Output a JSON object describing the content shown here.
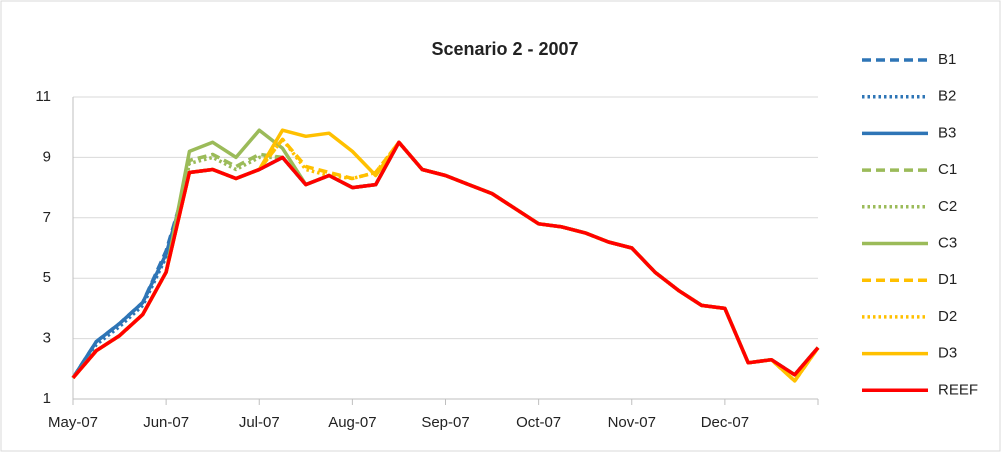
{
  "chart_data": {
    "type": "line",
    "title": "Scenario 2 - 2007",
    "x": [
      0,
      0.25,
      0.5,
      0.75,
      1,
      1.25,
      1.5,
      1.75,
      2,
      2.25,
      2.5,
      2.75,
      3,
      3.25,
      3.5,
      3.75,
      4,
      4.25,
      4.5,
      4.75,
      5,
      5.25,
      5.5,
      5.75,
      6,
      6.25,
      6.5,
      6.75,
      7,
      7.25,
      7.5,
      7.75,
      8
    ],
    "xlim": [
      0,
      8
    ],
    "xticks": [
      {
        "value": 0,
        "label": "May-07"
      },
      {
        "value": 1,
        "label": "Jun-07"
      },
      {
        "value": 2,
        "label": "Jul-07"
      },
      {
        "value": 3,
        "label": "Aug-07"
      },
      {
        "value": 4,
        "label": "Sep-07"
      },
      {
        "value": 5,
        "label": "Oct-07"
      },
      {
        "value": 6,
        "label": "Nov-07"
      },
      {
        "value": 7,
        "label": "Dec-07"
      }
    ],
    "ylim": [
      1,
      11
    ],
    "yticks": [
      1,
      3,
      5,
      7,
      9,
      11
    ],
    "grid": true,
    "legend": "right",
    "series": [
      {
        "name": "B1",
        "color": "#2e75b6",
        "style": "dashed",
        "values": [
          1.7,
          2.9,
          3.5,
          4.2,
          5.9,
          8.5,
          8.6,
          8.3,
          8.6,
          9.0,
          8.1,
          8.4,
          8.0,
          8.1,
          9.5,
          8.6,
          8.4,
          8.1,
          7.8,
          7.3,
          6.8,
          6.7,
          6.5,
          6.2,
          6.0,
          5.2,
          4.6,
          4.1,
          4.0,
          2.2,
          2.3,
          1.8,
          2.7
        ]
      },
      {
        "name": "B2",
        "color": "#2e75b6",
        "style": "dotted",
        "values": [
          1.7,
          2.8,
          3.4,
          4.1,
          5.7,
          8.5,
          8.6,
          8.3,
          8.6,
          9.0,
          8.1,
          8.4,
          8.0,
          8.1,
          9.5,
          8.6,
          8.4,
          8.1,
          7.8,
          7.3,
          6.8,
          6.7,
          6.5,
          6.2,
          6.0,
          5.2,
          4.6,
          4.1,
          4.0,
          2.2,
          2.3,
          1.8,
          2.7
        ]
      },
      {
        "name": "B3",
        "color": "#2e75b6",
        "style": "solid",
        "values": [
          1.7,
          2.9,
          3.5,
          4.2,
          5.8,
          8.5,
          8.6,
          8.3,
          8.6,
          9.0,
          8.1,
          8.4,
          8.0,
          8.1,
          9.5,
          8.6,
          8.4,
          8.1,
          7.8,
          7.3,
          6.8,
          6.7,
          6.5,
          6.2,
          6.0,
          5.2,
          4.6,
          4.1,
          4.0,
          2.2,
          2.3,
          1.8,
          2.7
        ]
      },
      {
        "name": "C1",
        "color": "#9bbb59",
        "style": "dashed",
        "values": [
          1.7,
          2.6,
          3.1,
          3.8,
          5.2,
          8.9,
          9.1,
          8.7,
          9.1,
          9.0,
          8.1,
          8.4,
          8.0,
          8.1,
          9.5,
          8.6,
          8.4,
          8.1,
          7.8,
          7.3,
          6.8,
          6.7,
          6.5,
          6.2,
          6.0,
          5.2,
          4.6,
          4.1,
          4.0,
          2.2,
          2.3,
          1.8,
          2.7
        ]
      },
      {
        "name": "C2",
        "color": "#9bbb59",
        "style": "dotted",
        "values": [
          1.7,
          2.6,
          3.1,
          3.8,
          5.2,
          8.8,
          9.0,
          8.6,
          9.0,
          9.0,
          8.1,
          8.4,
          8.0,
          8.1,
          9.5,
          8.6,
          8.4,
          8.1,
          7.8,
          7.3,
          6.8,
          6.7,
          6.5,
          6.2,
          6.0,
          5.2,
          4.6,
          4.1,
          4.0,
          2.2,
          2.3,
          1.8,
          2.7
        ]
      },
      {
        "name": "C3",
        "color": "#9bbb59",
        "style": "solid",
        "values": [
          1.7,
          2.6,
          3.1,
          3.8,
          5.2,
          9.2,
          9.5,
          9.0,
          9.9,
          9.3,
          8.1,
          8.4,
          8.0,
          8.1,
          9.5,
          8.6,
          8.4,
          8.1,
          7.8,
          7.3,
          6.8,
          6.7,
          6.5,
          6.2,
          6.0,
          5.2,
          4.6,
          4.1,
          4.0,
          2.2,
          2.3,
          1.8,
          2.7
        ]
      },
      {
        "name": "D1",
        "color": "#ffc000",
        "style": "dashed",
        "values": [
          1.7,
          2.6,
          3.1,
          3.8,
          5.2,
          8.5,
          8.6,
          8.3,
          8.6,
          9.6,
          8.7,
          8.5,
          8.3,
          8.5,
          9.5,
          8.6,
          8.4,
          8.1,
          7.8,
          7.3,
          6.8,
          6.7,
          6.5,
          6.2,
          6.0,
          5.2,
          4.6,
          4.1,
          4.0,
          2.2,
          2.3,
          1.6,
          2.7
        ]
      },
      {
        "name": "D2",
        "color": "#ffc000",
        "style": "dotted",
        "values": [
          1.7,
          2.6,
          3.1,
          3.8,
          5.2,
          8.5,
          8.6,
          8.3,
          8.6,
          9.6,
          8.6,
          8.4,
          8.3,
          8.5,
          9.5,
          8.6,
          8.4,
          8.1,
          7.8,
          7.3,
          6.8,
          6.7,
          6.5,
          6.2,
          6.0,
          5.2,
          4.6,
          4.1,
          4.0,
          2.2,
          2.3,
          1.6,
          2.7
        ]
      },
      {
        "name": "D3",
        "color": "#ffc000",
        "style": "solid",
        "values": [
          1.7,
          2.6,
          3.1,
          3.8,
          5.2,
          8.5,
          8.6,
          8.3,
          8.6,
          9.9,
          9.7,
          9.8,
          9.2,
          8.4,
          9.5,
          8.6,
          8.4,
          8.1,
          7.8,
          7.3,
          6.8,
          6.7,
          6.5,
          6.2,
          6.0,
          5.2,
          4.6,
          4.1,
          4.0,
          2.2,
          2.3,
          1.6,
          2.7
        ]
      },
      {
        "name": "REEF",
        "color": "#ff0000",
        "style": "solid",
        "values": [
          1.7,
          2.6,
          3.1,
          3.8,
          5.2,
          8.5,
          8.6,
          8.3,
          8.6,
          9.0,
          8.1,
          8.4,
          8.0,
          8.1,
          9.5,
          8.6,
          8.4,
          8.1,
          7.8,
          7.3,
          6.8,
          6.7,
          6.5,
          6.2,
          6.0,
          5.2,
          4.6,
          4.1,
          4.0,
          2.2,
          2.3,
          1.8,
          2.7
        ]
      }
    ]
  }
}
